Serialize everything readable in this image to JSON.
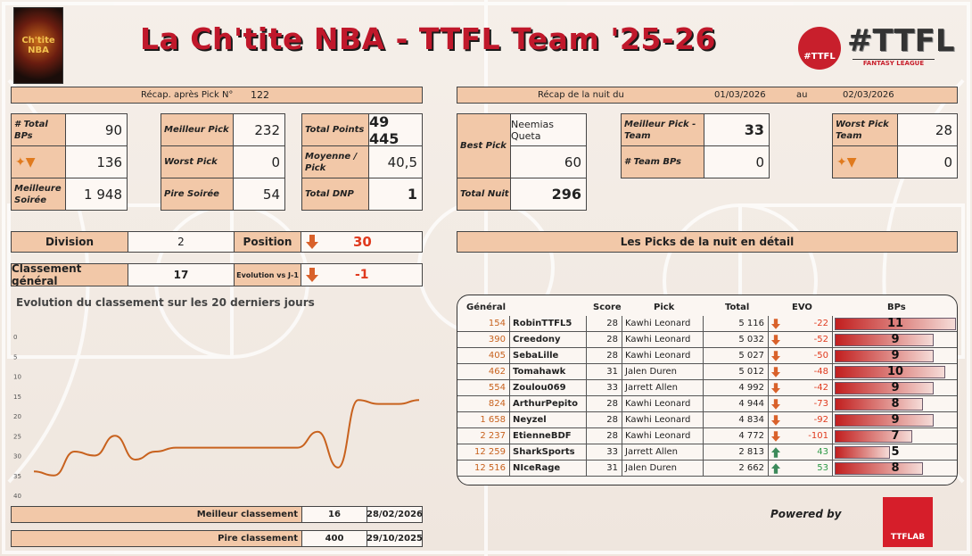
{
  "header": {
    "title": "La Ch'tite NBA - TTFL Team '25-26",
    "logo_left_text": "Ch'tite NBA",
    "logo_circle_text": "#TTFL",
    "logo_big_text": "#TTFL",
    "logo_big_sub": "FANTASY LEAGUE"
  },
  "recap": {
    "label": "Récap. après Pick N°",
    "pick_number": "122",
    "total_bps_label": "# Total BPs",
    "total_bps": "90",
    "carrot_value": "136",
    "best_soiree_label": "Meilleure Soirée",
    "best_soiree": "1 948",
    "best_pick_label": "Meilleur Pick",
    "best_pick": "232",
    "worst_pick_label": "Worst Pick",
    "worst_pick": "0",
    "pire_soiree_label": "Pire Soirée",
    "pire_soiree": "54",
    "total_points_label": "Total Points",
    "total_points": "49 445",
    "moyenne_label": "Moyenne / Pick",
    "moyenne": "40,5",
    "total_dnp_label": "Total DNP",
    "total_dnp": "1"
  },
  "night": {
    "label": "Récap de la nuit du",
    "date_from": "01/03/2026",
    "au_label": "au",
    "date_to": "02/03/2026",
    "best_pick_label": "Best Pick",
    "best_pick_player": "Neemias Queta",
    "best_pick_score": "60",
    "total_nuit_label": "Total Nuit",
    "total_nuit": "296",
    "meilleur_pick_team_label": "Meilleur Pick - Team",
    "meilleur_pick_team": "33",
    "team_bps_label": "# Team BPs",
    "team_bps": "0",
    "worst_pick_team_label": "Worst Pick Team",
    "worst_pick_team": "28",
    "carrot_team": "0"
  },
  "standing": {
    "division_label": "Division",
    "division": "2",
    "position_label": "Position",
    "position": "30",
    "classement_label": "Classement général",
    "classement": "17",
    "evolution_label": "Evolution vs J-1",
    "evolution": "-1"
  },
  "picks_section_title": "Les Picks de la nuit en détail",
  "chart_data": {
    "type": "line",
    "title": "Evolution du classement sur les 20 derniers jours",
    "ylim": [
      40,
      0
    ],
    "yticks": [
      "0",
      "5",
      "10",
      "15",
      "20",
      "25",
      "30",
      "35",
      "40"
    ],
    "x": [
      1,
      2,
      3,
      4,
      5,
      6,
      7,
      8,
      9,
      10,
      11,
      12,
      13,
      14,
      15,
      16,
      17,
      18,
      19,
      20
    ],
    "values": [
      34,
      35,
      29,
      30,
      25,
      31,
      29,
      28,
      28,
      28,
      28,
      28,
      28,
      28,
      24,
      33,
      16,
      17,
      17,
      16
    ],
    "color": "#c8621e"
  },
  "best_rank": {
    "label": "Meilleur classement",
    "value": "16",
    "date": "28/02/2026"
  },
  "worst_rank": {
    "label": "Pire classement",
    "value": "400",
    "date": "29/10/2025"
  },
  "picks_table": {
    "headers": [
      "Général",
      "Score",
      "Pick",
      "Total",
      "EVO",
      "BPs"
    ],
    "rows": [
      {
        "rank": "154",
        "name": "RobinTTFL5",
        "score": "28",
        "pick": "Kawhi Leonard",
        "total": "5 116",
        "evo": "-22",
        "dir": "down",
        "bps": 11
      },
      {
        "rank": "390",
        "name": "Creedony",
        "score": "28",
        "pick": "Kawhi Leonard",
        "total": "5 032",
        "evo": "-52",
        "dir": "down",
        "bps": 9
      },
      {
        "rank": "405",
        "name": "SebaLille",
        "score": "28",
        "pick": "Kawhi Leonard",
        "total": "5 027",
        "evo": "-50",
        "dir": "down",
        "bps": 9
      },
      {
        "rank": "462",
        "name": "Tomahawk",
        "score": "31",
        "pick": "Jalen Duren",
        "total": "5 012",
        "evo": "-48",
        "dir": "down",
        "bps": 10
      },
      {
        "rank": "554",
        "name": "Zoulou069",
        "score": "33",
        "pick": "Jarrett Allen",
        "total": "4 992",
        "evo": "-42",
        "dir": "down",
        "bps": 9
      },
      {
        "rank": "824",
        "name": "ArthurPepito",
        "score": "28",
        "pick": "Kawhi Leonard",
        "total": "4 944",
        "evo": "-73",
        "dir": "down",
        "bps": 8
      },
      {
        "rank": "1 658",
        "name": "Neyzel",
        "score": "28",
        "pick": "Kawhi Leonard",
        "total": "4 834",
        "evo": "-92",
        "dir": "down",
        "bps": 9
      },
      {
        "rank": "2 237",
        "name": "EtienneBDF",
        "score": "28",
        "pick": "Kawhi Leonard",
        "total": "4 772",
        "evo": "-101",
        "dir": "down",
        "bps": 7
      },
      {
        "rank": "12 259",
        "name": "SharkSports",
        "score": "33",
        "pick": "Jarrett Allen",
        "total": "2 813",
        "evo": "43",
        "dir": "up",
        "bps": 5
      },
      {
        "rank": "12 516",
        "name": "NIceRage",
        "score": "31",
        "pick": "Jalen Duren",
        "total": "2 662",
        "evo": "53",
        "dir": "up",
        "bps": 8
      }
    ]
  },
  "footer": {
    "powered_by": "Powered by",
    "ttflab_text": "TTFLAB"
  },
  "colors": {
    "header_fill": "#f2c8a8",
    "accent_red": "#c0182b",
    "down": "#e03a1e",
    "up": "#2e9a47",
    "line": "#c8621e"
  }
}
